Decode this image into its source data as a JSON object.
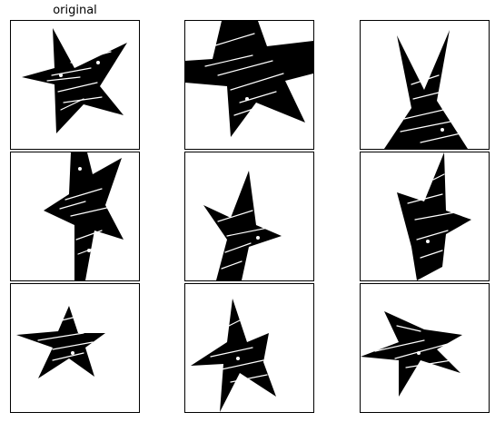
{
  "title": "original",
  "panels": [
    {
      "row": 1,
      "col": 1
    },
    {
      "row": 1,
      "col": 2
    },
    {
      "row": 1,
      "col": 3
    },
    {
      "row": 2,
      "col": 1
    },
    {
      "row": 2,
      "col": 2
    },
    {
      "row": 2,
      "col": 3
    },
    {
      "row": 3,
      "col": 1
    },
    {
      "row": 3,
      "col": 2
    },
    {
      "row": 3,
      "col": 3
    }
  ],
  "colors": {
    "ink": "#000000",
    "scratch": "#ffffff",
    "background": "#ffffff"
  }
}
